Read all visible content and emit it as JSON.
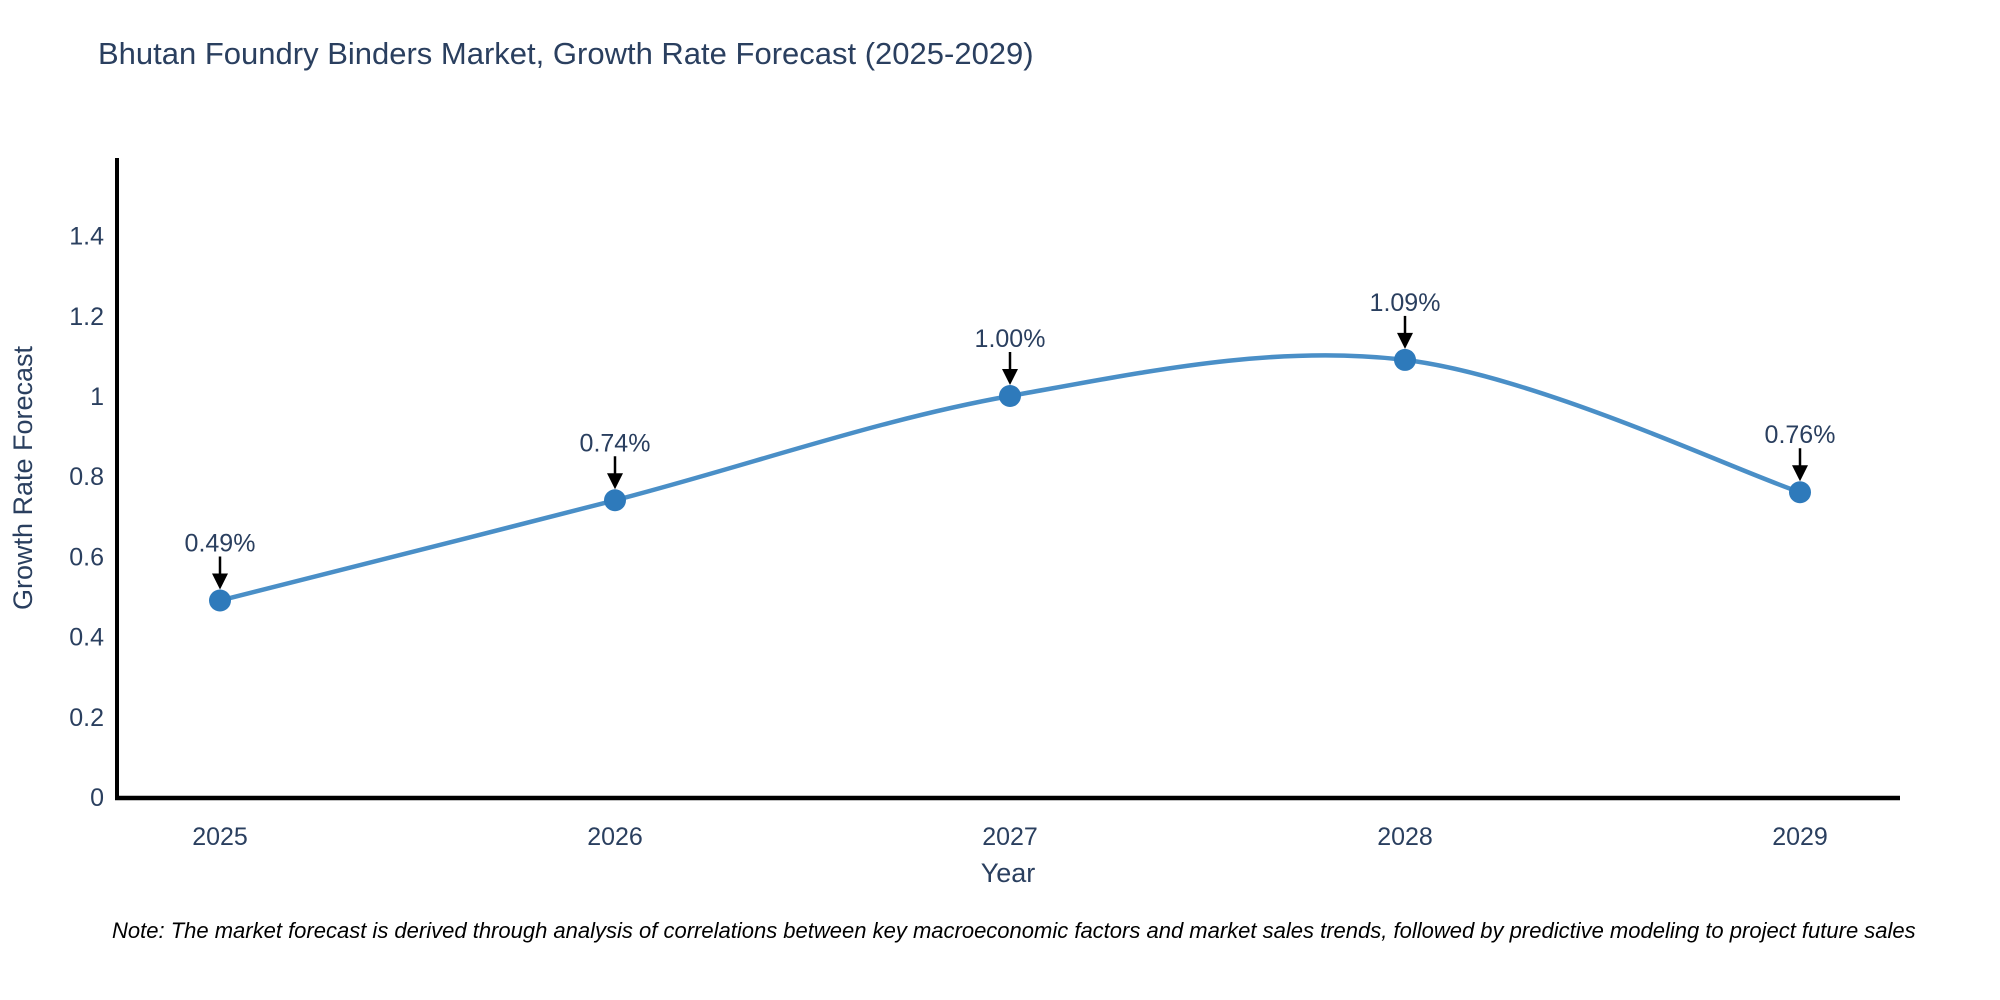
{
  "note": "Note: The market forecast is derived through analysis of correlations between key macroeconomic factors and market sales trends, followed by predictive modeling to project future sales",
  "chart_data": {
    "type": "line",
    "title": "Bhutan Foundry Binders Market, Growth Rate Forecast (2025-2029)",
    "xlabel": "Year",
    "ylabel": "Growth Rate Forecast",
    "x": [
      "2025",
      "2026",
      "2027",
      "2028",
      "2029"
    ],
    "values": [
      0.49,
      0.74,
      1.0,
      1.09,
      0.76
    ],
    "point_labels": [
      "0.49%",
      "0.74%",
      "1.00%",
      "1.09%",
      "0.76%"
    ],
    "ylim": [
      0,
      1.5
    ],
    "yticks": [
      0,
      0.2,
      0.4,
      0.6,
      0.8,
      1,
      1.2,
      1.4
    ],
    "ytick_labels": [
      "0",
      "0.2",
      "0.4",
      "0.6",
      "0.8",
      "1",
      "1.2",
      "1.4"
    ],
    "line_shape": "spline",
    "grid": false,
    "legend_position": "none",
    "colors": {
      "line": "#4a8fc7",
      "marker": "#2e7abb",
      "axis": "#000000",
      "tick_text": "#2a3f5f",
      "title_text": "#2a3f5f",
      "annotation_text": "#2a3f5f",
      "annotation_arrow": "#000000",
      "background": "#ffffff"
    }
  }
}
